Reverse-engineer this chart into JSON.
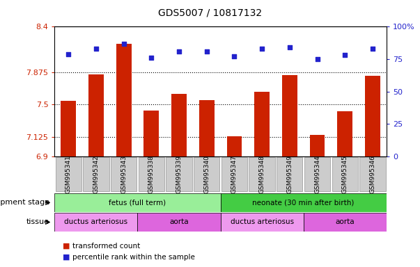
{
  "title": "GDS5007 / 10817132",
  "samples": [
    "GSM995341",
    "GSM995342",
    "GSM995343",
    "GSM995338",
    "GSM995339",
    "GSM995340",
    "GSM995347",
    "GSM995348",
    "GSM995349",
    "GSM995344",
    "GSM995345",
    "GSM995346"
  ],
  "bar_values": [
    7.54,
    7.85,
    8.2,
    7.43,
    7.62,
    7.55,
    7.13,
    7.65,
    7.84,
    7.15,
    7.42,
    7.83
  ],
  "dot_values": [
    79,
    83,
    87,
    76,
    81,
    81,
    77,
    83,
    84,
    75,
    78,
    83
  ],
  "ylim_left": [
    6.9,
    8.4
  ],
  "ylim_right": [
    0,
    100
  ],
  "yticks_left": [
    6.9,
    7.125,
    7.5,
    7.875,
    8.4
  ],
  "yticks_right": [
    0,
    25,
    50,
    75,
    100
  ],
  "ytick_labels_left": [
    "6.9",
    "7.125",
    "7.5",
    "7.875",
    "8.4"
  ],
  "ytick_labels_right": [
    "0",
    "25",
    "50",
    "75",
    "100%"
  ],
  "hlines": [
    7.125,
    7.5,
    7.875
  ],
  "bar_color": "#cc2200",
  "dot_color": "#2222cc",
  "bar_width": 0.55,
  "development_stages": [
    {
      "label": "fetus (full term)",
      "start": 0,
      "end": 6,
      "color": "#99ee99"
    },
    {
      "label": "neonate (30 min after birth)",
      "start": 6,
      "end": 12,
      "color": "#44cc44"
    }
  ],
  "tissues": [
    {
      "label": "ductus arteriosus",
      "start": 0,
      "end": 3,
      "color": "#ee99ee"
    },
    {
      "label": "aorta",
      "start": 3,
      "end": 6,
      "color": "#dd66dd"
    },
    {
      "label": "ductus arteriosus",
      "start": 6,
      "end": 9,
      "color": "#ee99ee"
    },
    {
      "label": "aorta",
      "start": 9,
      "end": 12,
      "color": "#dd66dd"
    }
  ],
  "legend_items": [
    {
      "label": "transformed count",
      "color": "#cc2200"
    },
    {
      "label": "percentile rank within the sample",
      "color": "#2222cc"
    }
  ],
  "axis_label_color_left": "#cc2200",
  "axis_label_color_right": "#2222cc",
  "dev_stage_label": "development stage",
  "tissue_label": "tissue",
  "background_color": "#ffffff",
  "plot_bg_color": "#ffffff",
  "tick_bg_color": "#cccccc"
}
